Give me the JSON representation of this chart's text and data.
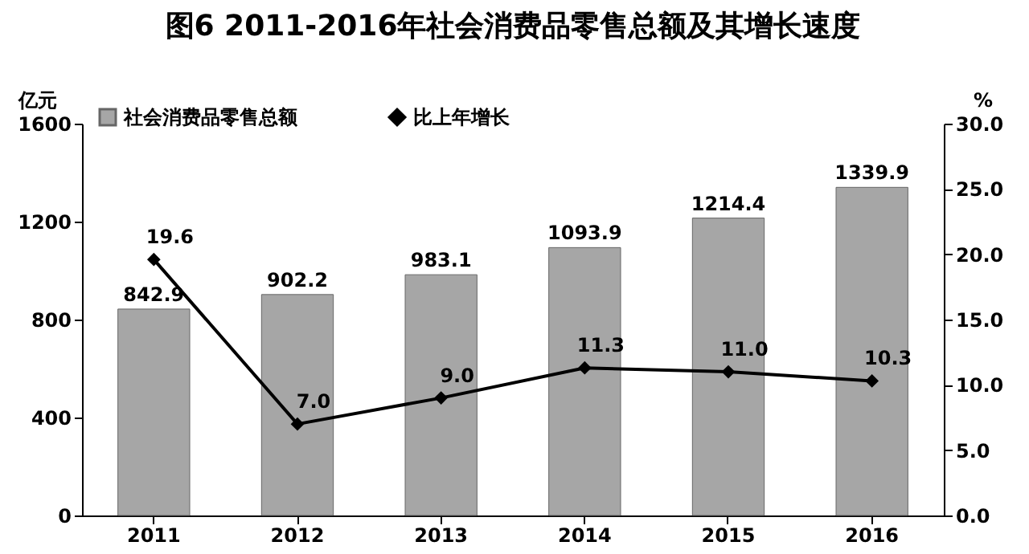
{
  "chart_data": {
    "type": "bar",
    "title": "图6 2011-2016年社会消费品零售总额及其增长速度",
    "categories": [
      "2011",
      "2012",
      "2013",
      "2014",
      "2015",
      "2016"
    ],
    "ylabel": "亿元",
    "y2label": "%",
    "series": [
      {
        "name": "社会消费品零售总额",
        "color": "#a6a6a6",
        "values": [
          842.9,
          902.2,
          983.1,
          1093.9,
          1214.4,
          1339.9
        ],
        "value_labels": [
          "842.9",
          "902.2",
          "983.1",
          "1093.9",
          "1214.4",
          "1339.9"
        ]
      },
      {
        "name": "比上年增长",
        "type": "line",
        "axis": "y2",
        "color": "#000000",
        "marker": "diamond",
        "values": [
          19.6,
          7.0,
          9.0,
          11.3,
          11.0,
          10.3
        ],
        "value_labels": [
          "19.6",
          "7.0",
          "9.0",
          "11.3",
          "11.0",
          "10.3"
        ]
      }
    ],
    "ylim": [
      0,
      1600
    ],
    "yticks": [
      0,
      400,
      800,
      1200,
      1600
    ],
    "y2lim": [
      0,
      30
    ],
    "y2ticks": [
      {
        "value": 0,
        "label": "0.0"
      },
      {
        "value": 5,
        "label": "5.0"
      },
      {
        "value": 10,
        "label": "10.0"
      },
      {
        "value": 15,
        "label": "15.0"
      },
      {
        "value": 20,
        "label": "20.0"
      },
      {
        "value": 25,
        "label": "25.0"
      },
      {
        "value": 30,
        "label": "30.0"
      }
    ],
    "legend": "top left",
    "grid": false
  }
}
